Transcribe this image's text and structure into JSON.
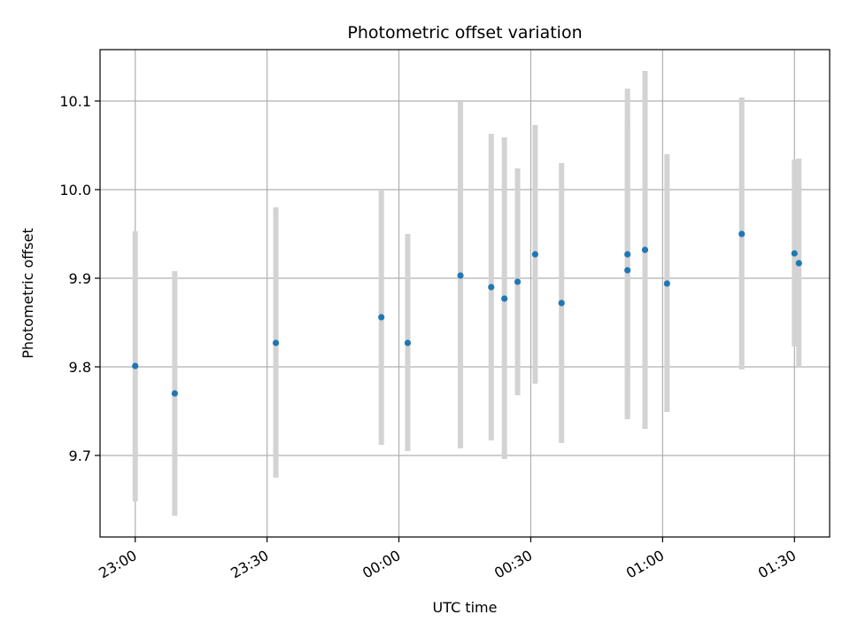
{
  "chart_data": {
    "type": "scatter",
    "title": "Photometric offset variation",
    "xlabel": "UTC time",
    "ylabel": "Photometric offset",
    "grid": true,
    "x_ticks": [
      "23:00",
      "23:30",
      "00:00",
      "00:30",
      "01:00",
      "01:30"
    ],
    "y_ticks": [
      "9.7",
      "9.8",
      "9.9",
      "10.0",
      "10.1"
    ],
    "y_tick_values": [
      9.7,
      9.8,
      9.9,
      10.0,
      10.1
    ],
    "xlim": [
      "22:52",
      "01:38"
    ],
    "ylim": [
      9.608,
      10.158
    ],
    "marker_color": "#1f77b4",
    "errorbar_color": "#d3d3d3",
    "points": [
      {
        "x": "23:00",
        "y": 9.801,
        "y_low": 9.648,
        "y_high": 9.953
      },
      {
        "x": "23:09",
        "y": 9.77,
        "y_low": 9.632,
        "y_high": 9.908
      },
      {
        "x": "23:32",
        "y": 9.827,
        "y_low": 9.675,
        "y_high": 9.98
      },
      {
        "x": "23:56",
        "y": 9.856,
        "y_low": 9.712,
        "y_high": 10.0
      },
      {
        "x": "00:02",
        "y": 9.827,
        "y_low": 9.705,
        "y_high": 9.95
      },
      {
        "x": "00:14",
        "y": 9.903,
        "y_low": 9.708,
        "y_high": 10.099
      },
      {
        "x": "00:21",
        "y": 9.89,
        "y_low": 9.717,
        "y_high": 10.063
      },
      {
        "x": "00:24",
        "y": 9.877,
        "y_low": 9.696,
        "y_high": 10.059
      },
      {
        "x": "00:27",
        "y": 9.896,
        "y_low": 9.768,
        "y_high": 10.024
      },
      {
        "x": "00:31",
        "y": 9.927,
        "y_low": 9.781,
        "y_high": 10.073
      },
      {
        "x": "00:37",
        "y": 9.872,
        "y_low": 9.714,
        "y_high": 10.03
      },
      {
        "x": "00:52",
        "y": 9.909,
        "y_low": 9.741,
        "y_high": 10.078
      },
      {
        "x": "00:52",
        "y": 9.927,
        "y_low": 9.741,
        "y_high": 10.114
      },
      {
        "x": "00:56",
        "y": 9.932,
        "y_low": 9.73,
        "y_high": 10.134
      },
      {
        "x": "01:01",
        "y": 9.894,
        "y_low": 9.749,
        "y_high": 10.04
      },
      {
        "x": "01:18",
        "y": 9.95,
        "y_low": 9.797,
        "y_high": 10.104
      },
      {
        "x": "01:30",
        "y": 9.928,
        "y_low": 9.823,
        "y_high": 10.034
      },
      {
        "x": "01:31",
        "y": 9.917,
        "y_low": 9.8,
        "y_high": 10.035
      }
    ]
  }
}
